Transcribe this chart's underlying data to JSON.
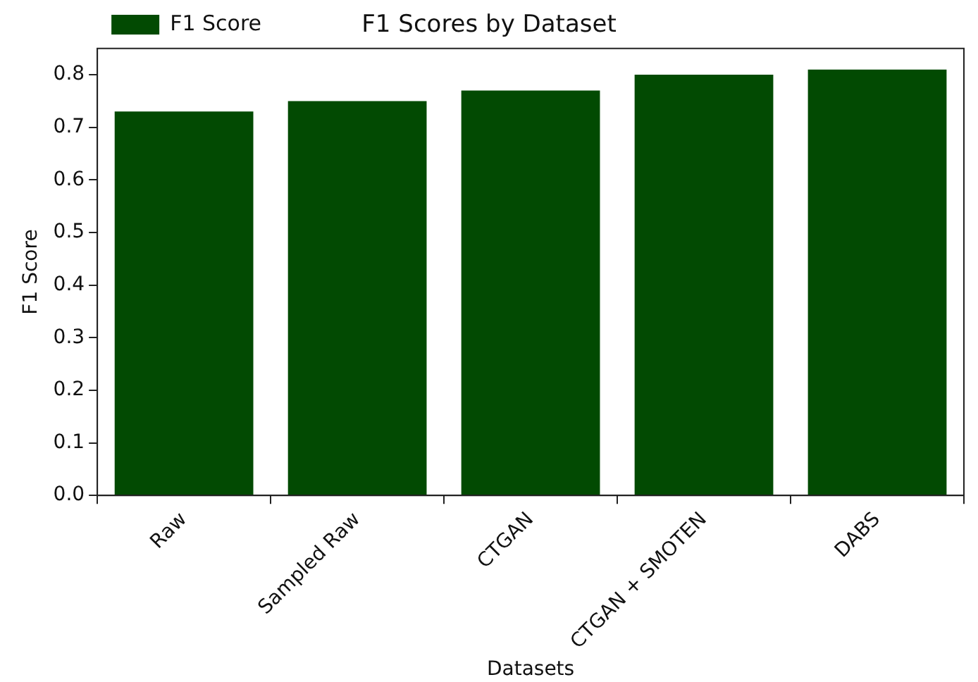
{
  "chart_data": {
    "type": "bar",
    "title": "F1 Scores by Dataset",
    "xlabel": "Datasets",
    "ylabel": "F1 Score",
    "categories": [
      "Raw",
      "Sampled Raw",
      "CTGAN",
      "CTGAN + SMOTEN",
      "DABS"
    ],
    "series": [
      {
        "name": "F1 Score",
        "color": "#024a02",
        "values": [
          0.73,
          0.75,
          0.77,
          0.8,
          0.81
        ]
      }
    ],
    "ylim": [
      0,
      0.85
    ],
    "yticks": [
      {
        "value": 0,
        "label": "0.0"
      },
      0.1,
      0.2,
      0.3,
      0.4,
      0.5,
      0.6,
      0.7,
      0.8
    ],
    "grid": false,
    "legend": "top left"
  }
}
